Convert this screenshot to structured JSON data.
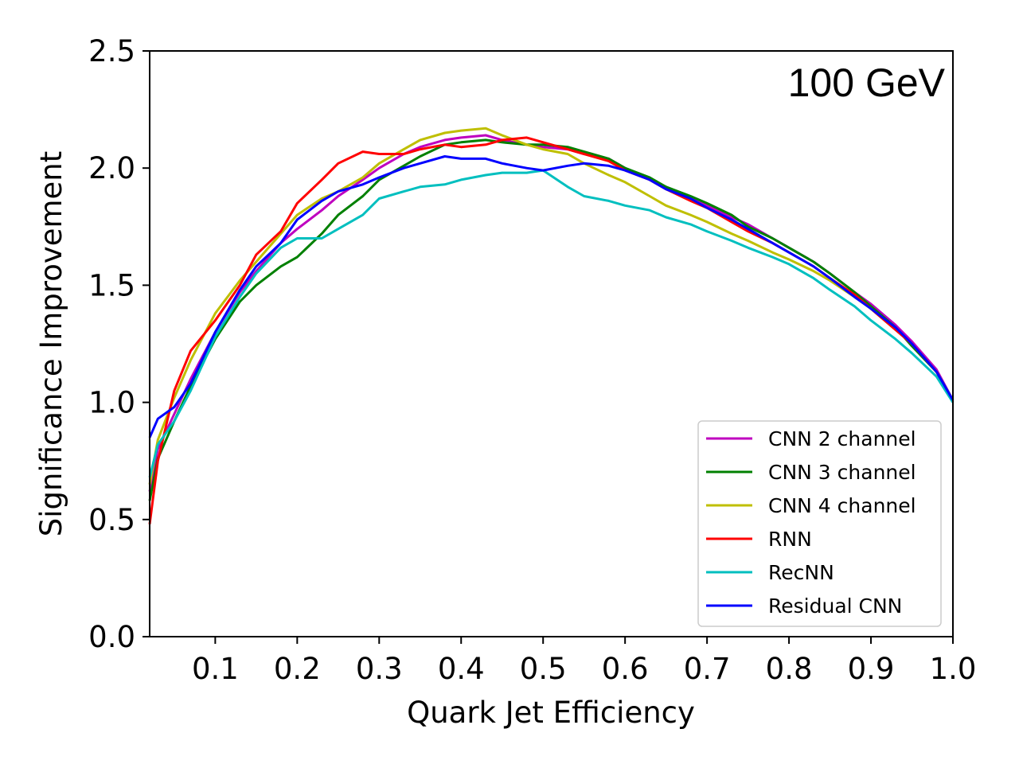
{
  "chart_data": {
    "type": "line",
    "title": "",
    "annotation": "100 GeV",
    "xlabel": "Quark Jet Efficiency",
    "ylabel": "Significance Improvement",
    "xlim": [
      0.02,
      1.0
    ],
    "ylim": [
      0.0,
      2.5
    ],
    "xticks": [
      0.1,
      0.2,
      0.3,
      0.4,
      0.5,
      0.6,
      0.7,
      0.8,
      0.9,
      1.0
    ],
    "xtick_labels": [
      "0.1",
      "0.2",
      "0.3",
      "0.4",
      "0.5",
      "0.6",
      "0.7",
      "0.8",
      "0.9",
      "1.0"
    ],
    "yticks": [
      0.0,
      0.5,
      1.0,
      1.5,
      2.0,
      2.5
    ],
    "ytick_labels": [
      "0.0",
      "0.5",
      "1.0",
      "1.5",
      "2.0",
      "2.5"
    ],
    "grid": false,
    "legend_position": "bottom-right",
    "series": [
      {
        "name": "CNN 2 channel",
        "color": "#bf00bf",
        "x": [
          0.02,
          0.03,
          0.05,
          0.07,
          0.1,
          0.13,
          0.15,
          0.18,
          0.2,
          0.23,
          0.25,
          0.28,
          0.3,
          0.33,
          0.35,
          0.38,
          0.4,
          0.43,
          0.45,
          0.48,
          0.5,
          0.53,
          0.55,
          0.58,
          0.6,
          0.63,
          0.65,
          0.68,
          0.7,
          0.73,
          0.75,
          0.78,
          0.8,
          0.83,
          0.85,
          0.88,
          0.9,
          0.93,
          0.95,
          0.98,
          1.0
        ],
        "y": [
          0.62,
          0.8,
          0.95,
          1.1,
          1.3,
          1.47,
          1.56,
          1.68,
          1.74,
          1.82,
          1.88,
          1.95,
          2.0,
          2.06,
          2.09,
          2.12,
          2.13,
          2.14,
          2.12,
          2.1,
          2.09,
          2.08,
          2.06,
          2.04,
          2.0,
          1.95,
          1.92,
          1.87,
          1.84,
          1.79,
          1.76,
          1.7,
          1.66,
          1.6,
          1.55,
          1.47,
          1.42,
          1.33,
          1.26,
          1.14,
          1.01
        ]
      },
      {
        "name": "CNN 3 channel",
        "color": "#008000",
        "x": [
          0.02,
          0.03,
          0.05,
          0.07,
          0.1,
          0.13,
          0.15,
          0.18,
          0.2,
          0.23,
          0.25,
          0.28,
          0.3,
          0.33,
          0.35,
          0.38,
          0.4,
          0.43,
          0.45,
          0.48,
          0.5,
          0.53,
          0.55,
          0.58,
          0.6,
          0.63,
          0.65,
          0.68,
          0.7,
          0.73,
          0.75,
          0.78,
          0.8,
          0.83,
          0.85,
          0.88,
          0.9,
          0.93,
          0.95,
          0.98,
          1.0
        ],
        "y": [
          0.58,
          0.76,
          0.92,
          1.07,
          1.27,
          1.43,
          1.5,
          1.58,
          1.62,
          1.72,
          1.8,
          1.88,
          1.95,
          2.01,
          2.05,
          2.1,
          2.11,
          2.12,
          2.11,
          2.1,
          2.1,
          2.09,
          2.07,
          2.04,
          2.0,
          1.96,
          1.92,
          1.88,
          1.85,
          1.8,
          1.75,
          1.7,
          1.66,
          1.6,
          1.55,
          1.47,
          1.41,
          1.32,
          1.24,
          1.13,
          1.01
        ]
      },
      {
        "name": "CNN 4 channel",
        "color": "#bfbf00",
        "x": [
          0.02,
          0.03,
          0.05,
          0.07,
          0.1,
          0.13,
          0.15,
          0.18,
          0.2,
          0.23,
          0.25,
          0.28,
          0.3,
          0.33,
          0.35,
          0.38,
          0.4,
          0.43,
          0.45,
          0.48,
          0.5,
          0.53,
          0.55,
          0.58,
          0.6,
          0.63,
          0.65,
          0.68,
          0.7,
          0.73,
          0.75,
          0.78,
          0.8,
          0.83,
          0.85,
          0.88,
          0.9,
          0.93,
          0.95,
          0.98,
          1.0
        ],
        "y": [
          0.65,
          0.84,
          1.02,
          1.18,
          1.38,
          1.52,
          1.6,
          1.72,
          1.8,
          1.87,
          1.9,
          1.96,
          2.02,
          2.08,
          2.12,
          2.15,
          2.16,
          2.17,
          2.14,
          2.1,
          2.08,
          2.06,
          2.02,
          1.97,
          1.94,
          1.88,
          1.84,
          1.8,
          1.77,
          1.72,
          1.69,
          1.64,
          1.61,
          1.56,
          1.52,
          1.45,
          1.4,
          1.31,
          1.25,
          1.13,
          1.01
        ]
      },
      {
        "name": "RNN",
        "color": "#ff0000",
        "x": [
          0.02,
          0.03,
          0.05,
          0.07,
          0.1,
          0.13,
          0.15,
          0.18,
          0.2,
          0.23,
          0.25,
          0.28,
          0.3,
          0.33,
          0.35,
          0.38,
          0.4,
          0.43,
          0.45,
          0.48,
          0.5,
          0.53,
          0.55,
          0.58,
          0.6,
          0.63,
          0.65,
          0.68,
          0.7,
          0.73,
          0.75,
          0.78,
          0.8,
          0.83,
          0.85,
          0.88,
          0.9,
          0.93,
          0.95,
          0.98,
          1.0
        ],
        "y": [
          0.48,
          0.75,
          1.05,
          1.22,
          1.35,
          1.5,
          1.63,
          1.73,
          1.85,
          1.95,
          2.02,
          2.07,
          2.06,
          2.06,
          2.08,
          2.1,
          2.09,
          2.1,
          2.12,
          2.13,
          2.11,
          2.08,
          2.06,
          2.03,
          1.99,
          1.95,
          1.91,
          1.86,
          1.83,
          1.77,
          1.73,
          1.68,
          1.64,
          1.58,
          1.53,
          1.46,
          1.4,
          1.31,
          1.25,
          1.13,
          1.0
        ]
      },
      {
        "name": "RecNN",
        "color": "#00bfbf",
        "x": [
          0.02,
          0.03,
          0.05,
          0.07,
          0.1,
          0.13,
          0.15,
          0.18,
          0.2,
          0.23,
          0.25,
          0.28,
          0.3,
          0.33,
          0.35,
          0.38,
          0.4,
          0.43,
          0.45,
          0.48,
          0.5,
          0.53,
          0.55,
          0.58,
          0.6,
          0.63,
          0.65,
          0.68,
          0.7,
          0.73,
          0.75,
          0.78,
          0.8,
          0.83,
          0.85,
          0.88,
          0.9,
          0.93,
          0.95,
          0.98,
          1.0
        ],
        "y": [
          0.68,
          0.82,
          0.92,
          1.05,
          1.28,
          1.45,
          1.55,
          1.66,
          1.7,
          1.7,
          1.74,
          1.8,
          1.87,
          1.9,
          1.92,
          1.93,
          1.95,
          1.97,
          1.98,
          1.98,
          1.99,
          1.92,
          1.88,
          1.86,
          1.84,
          1.82,
          1.79,
          1.76,
          1.73,
          1.69,
          1.66,
          1.62,
          1.59,
          1.53,
          1.48,
          1.41,
          1.35,
          1.27,
          1.21,
          1.11,
          1.0
        ]
      },
      {
        "name": "Residual CNN",
        "color": "#0000ff",
        "x": [
          0.02,
          0.03,
          0.05,
          0.07,
          0.1,
          0.13,
          0.15,
          0.18,
          0.2,
          0.23,
          0.25,
          0.28,
          0.3,
          0.33,
          0.35,
          0.38,
          0.4,
          0.43,
          0.45,
          0.48,
          0.5,
          0.53,
          0.55,
          0.58,
          0.6,
          0.63,
          0.65,
          0.68,
          0.7,
          0.73,
          0.75,
          0.78,
          0.8,
          0.83,
          0.85,
          0.88,
          0.9,
          0.93,
          0.95,
          0.98,
          1.0
        ],
        "y": [
          0.85,
          0.93,
          0.98,
          1.08,
          1.3,
          1.48,
          1.58,
          1.68,
          1.78,
          1.86,
          1.9,
          1.93,
          1.96,
          2.0,
          2.02,
          2.05,
          2.04,
          2.04,
          2.02,
          2.0,
          1.99,
          2.01,
          2.02,
          2.01,
          1.99,
          1.95,
          1.91,
          1.87,
          1.83,
          1.78,
          1.74,
          1.68,
          1.64,
          1.58,
          1.53,
          1.45,
          1.4,
          1.32,
          1.25,
          1.13,
          1.01
        ]
      }
    ]
  }
}
